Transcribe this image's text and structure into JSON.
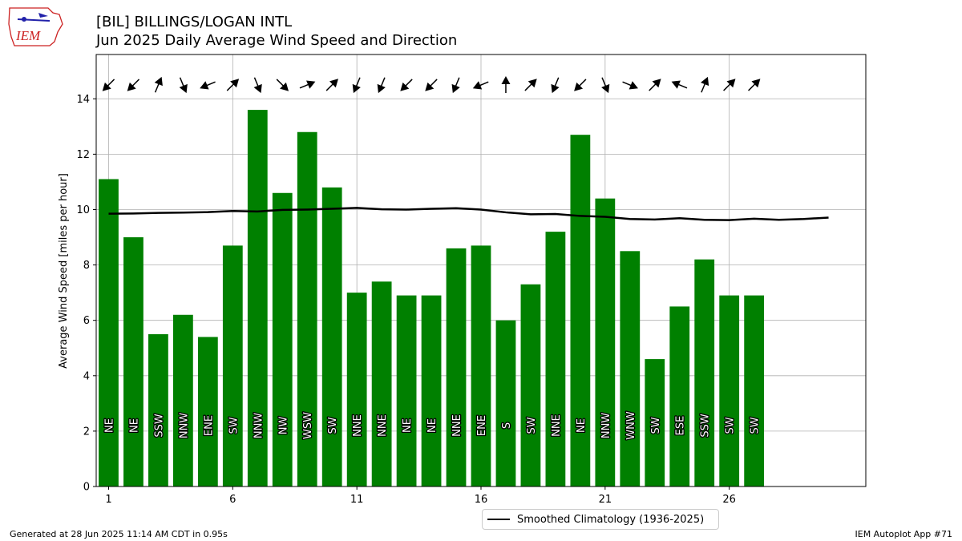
{
  "header": {
    "title_line1": "[BIL] BILLINGS/LOGAN INTL",
    "title_line2": "Jun 2025 Daily Average Wind Speed and Direction",
    "logo_text": "IEM"
  },
  "footer": {
    "generated": "Generated at 28 Jun 2025 11:14 AM CDT in 0.95s",
    "app": "IEM Autoplot App #71"
  },
  "colors": {
    "bars": "#008000",
    "climatology": "#000000",
    "grid": "#b0b0b0",
    "logo_red": "#cc2222",
    "logo_blue": "#2222aa"
  },
  "chart_data": {
    "type": "bar",
    "title": "Jun 2025 Daily Average Wind Speed and Direction",
    "ylabel": "Average Wind Speed [miles per hour]",
    "xlabel": "",
    "xlim": [
      0.5,
      31.5
    ],
    "ylim": [
      0,
      15.6
    ],
    "x_ticks": [
      1,
      6,
      11,
      16,
      21,
      26
    ],
    "y_ticks": [
      0,
      2,
      4,
      6,
      8,
      10,
      12,
      14
    ],
    "grid": true,
    "legend_position": "bottom-center",
    "days": [
      1,
      2,
      3,
      4,
      5,
      6,
      7,
      8,
      9,
      10,
      11,
      12,
      13,
      14,
      15,
      16,
      17,
      18,
      19,
      20,
      21,
      22,
      23,
      24,
      25,
      26,
      27
    ],
    "values": [
      11.1,
      9.0,
      5.5,
      6.2,
      5.4,
      8.7,
      13.6,
      10.6,
      12.8,
      10.8,
      7.0,
      7.4,
      6.9,
      6.9,
      8.6,
      8.7,
      6.0,
      7.3,
      9.2,
      12.7,
      10.4,
      8.5,
      4.6,
      6.5,
      8.2,
      6.9,
      6.9
    ],
    "directions": [
      "NE",
      "NE",
      "SSW",
      "NNW",
      "ENE",
      "SW",
      "NNW",
      "NW",
      "WSW",
      "SW",
      "NNE",
      "NNE",
      "NE",
      "NE",
      "NNE",
      "ENE",
      "S",
      "SW",
      "NNE",
      "NE",
      "NNW",
      "WNW",
      "SW",
      "ESE",
      "SSW",
      "SW",
      "SW"
    ],
    "direction_degrees": [
      45,
      45,
      202.5,
      337.5,
      67.5,
      225,
      337.5,
      315,
      247.5,
      225,
      22.5,
      22.5,
      45,
      45,
      22.5,
      67.5,
      180,
      225,
      22.5,
      45,
      337.5,
      292.5,
      225,
      112.5,
      202.5,
      225,
      225
    ],
    "climatology": {
      "name": "Smoothed Climatology (1936-2025)",
      "days": [
        1,
        2,
        3,
        4,
        5,
        6,
        7,
        8,
        9,
        10,
        11,
        12,
        13,
        14,
        15,
        16,
        17,
        18,
        19,
        20,
        21,
        22,
        23,
        24,
        25,
        26,
        27,
        28,
        29,
        30
      ],
      "values": [
        9.85,
        9.86,
        9.88,
        9.89,
        9.91,
        9.95,
        9.93,
        9.99,
        10.0,
        10.03,
        10.06,
        10.01,
        10.0,
        10.03,
        10.05,
        10.0,
        9.9,
        9.83,
        9.84,
        9.77,
        9.74,
        9.66,
        9.64,
        9.69,
        9.63,
        9.62,
        9.67,
        9.63,
        9.66,
        9.71
      ]
    }
  }
}
